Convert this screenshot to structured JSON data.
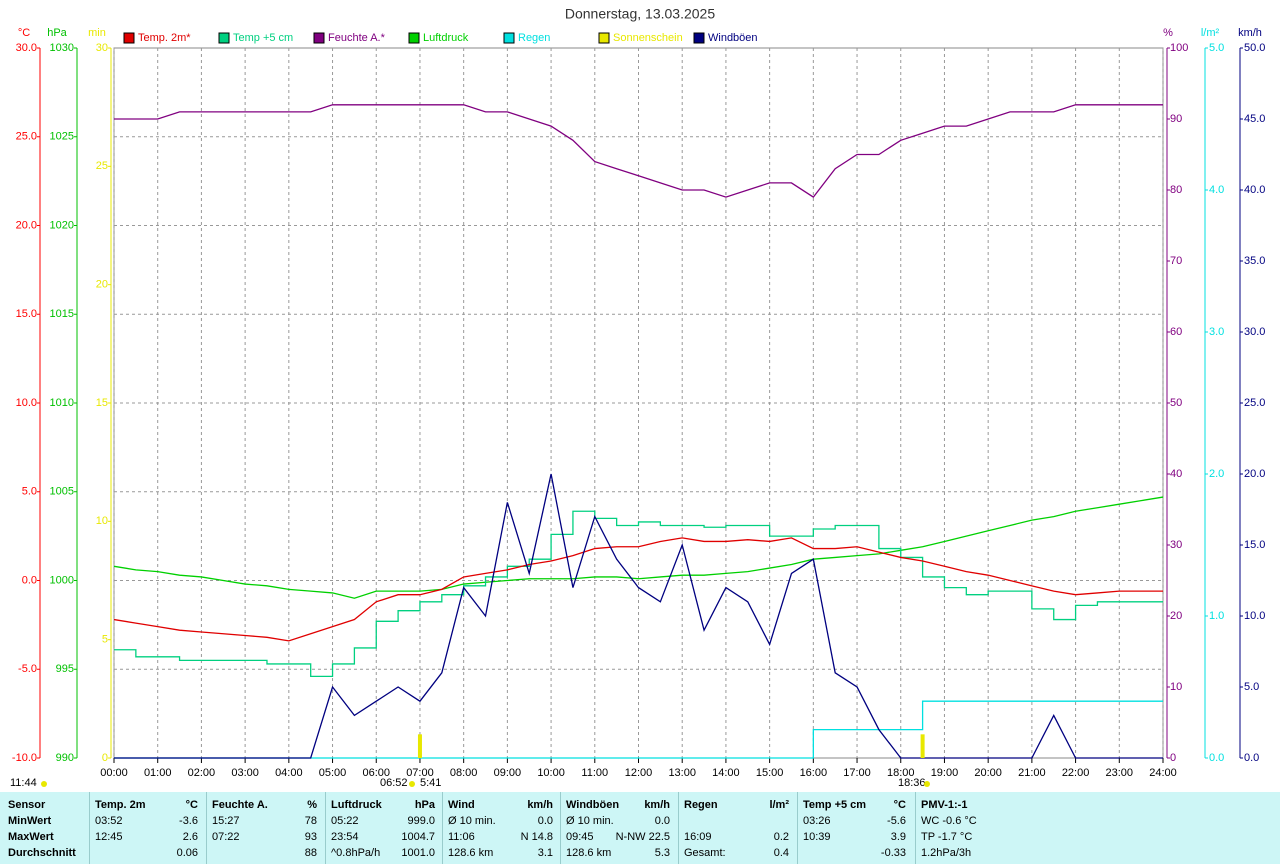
{
  "chart_data": {
    "type": "line",
    "title": "Donnerstag, 13.03.2025",
    "xlim": [
      0,
      24
    ],
    "xticks": [
      {
        "value": 0,
        "label": "00:00"
      },
      {
        "value": 1,
        "label": "01:00"
      },
      {
        "value": 2,
        "label": "02:00"
      },
      {
        "value": 3,
        "label": "03:00"
      },
      {
        "value": 4,
        "label": "04:00"
      },
      {
        "value": 5,
        "label": "05:00"
      },
      {
        "value": 6,
        "label": "06:00"
      },
      {
        "value": 7,
        "label": "07:00"
      },
      {
        "value": 8,
        "label": "08:00"
      },
      {
        "value": 9,
        "label": "09:00"
      },
      {
        "value": 10,
        "label": "10:00"
      },
      {
        "value": 11,
        "label": "11:00"
      },
      {
        "value": 12,
        "label": "12:00"
      },
      {
        "value": 13,
        "label": "13:00"
      },
      {
        "value": 14,
        "label": "14:00"
      },
      {
        "value": 15,
        "label": "15:00"
      },
      {
        "value": 16,
        "label": "16:00"
      },
      {
        "value": 17,
        "label": "17:00"
      },
      {
        "value": 18,
        "label": "18:00"
      },
      {
        "value": 19,
        "label": "19:00"
      },
      {
        "value": 20,
        "label": "20:00"
      },
      {
        "value": 21,
        "label": "21:00"
      },
      {
        "value": 22,
        "label": "22:00"
      },
      {
        "value": 23,
        "label": "23:00"
      },
      {
        "value": 24,
        "label": "24:00"
      }
    ],
    "grid": true,
    "axes": [
      {
        "unit": "°C",
        "color": "#ff0000",
        "lim": [
          -10,
          30
        ],
        "ticks": [
          {
            "value": -10,
            "label": "-10.0"
          },
          {
            "value": -5,
            "label": "-5.0"
          },
          {
            "value": 0,
            "label": "0.0"
          },
          {
            "value": 5,
            "label": "5.0"
          },
          {
            "value": 10,
            "label": "10.0"
          },
          {
            "value": 15,
            "label": "15.0"
          },
          {
            "value": 20,
            "label": "20.0"
          },
          {
            "value": 25,
            "label": "25.0"
          },
          {
            "value": 30,
            "label": "30.0"
          }
        ]
      },
      {
        "unit": "hPa",
        "color": "#00c000",
        "lim": [
          990,
          1030
        ],
        "ticks": [
          990,
          995,
          1000,
          1005,
          1010,
          1015,
          1020,
          1025,
          1030
        ]
      },
      {
        "unit": "min",
        "color": "#e8e800",
        "lim": [
          0,
          30
        ],
        "ticks": [
          0,
          5,
          10,
          15,
          20,
          25,
          30
        ]
      },
      {
        "unit": "%",
        "color": "#800080",
        "lim": [
          0,
          100
        ],
        "ticks": [
          0,
          10,
          20,
          30,
          40,
          50,
          60,
          70,
          80,
          90,
          100
        ]
      },
      {
        "unit": "l/m²",
        "color": "#00e0e0",
        "lim": [
          0,
          5
        ],
        "ticks": [
          {
            "value": 0,
            "label": "0.0"
          },
          {
            "value": 1,
            "label": "1.0"
          },
          {
            "value": 2,
            "label": "2.0"
          },
          {
            "value": 3,
            "label": "3.0"
          },
          {
            "value": 4,
            "label": "4.0"
          },
          {
            "value": 5,
            "label": "5.0"
          }
        ]
      },
      {
        "unit": "km/h",
        "color": "#000080",
        "lim": [
          0,
          50
        ],
        "ticks": [
          {
            "value": 0,
            "label": "0.0"
          },
          {
            "value": 5,
            "label": "5.0"
          },
          {
            "value": 10,
            "label": "10.0"
          },
          {
            "value": 15,
            "label": "15.0"
          },
          {
            "value": 20,
            "label": "20.0"
          },
          {
            "value": 25,
            "label": "25.0"
          },
          {
            "value": 30,
            "label": "30.0"
          },
          {
            "value": 35,
            "label": "35.0"
          },
          {
            "value": 40,
            "label": "40.0"
          },
          {
            "value": 45,
            "label": "45.0"
          },
          {
            "value": 50,
            "label": "50.0"
          }
        ]
      }
    ],
    "x": [
      0,
      0.5,
      1,
      1.5,
      2,
      2.5,
      3,
      3.5,
      4,
      4.5,
      5,
      5.5,
      6,
      6.5,
      7,
      7.5,
      8,
      8.5,
      9,
      9.5,
      10,
      10.5,
      11,
      11.5,
      12,
      12.5,
      13,
      13.5,
      14,
      14.5,
      15,
      15.5,
      16,
      16.5,
      17,
      17.5,
      18,
      18.5,
      19,
      19.5,
      20,
      20.5,
      21,
      21.5,
      22,
      22.5,
      23,
      23.5,
      24
    ],
    "series": [
      {
        "name": "Temp. 2m*",
        "color": "#e00000",
        "axis": 0,
        "style": "line",
        "values": [
          -2.2,
          -2.4,
          -2.6,
          -2.8,
          -2.9,
          -3.0,
          -3.1,
          -3.2,
          -3.4,
          -3.0,
          -2.6,
          -2.2,
          -1.2,
          -0.8,
          -0.8,
          -0.5,
          0.2,
          0.4,
          0.6,
          0.9,
          1.1,
          1.4,
          1.8,
          1.9,
          1.9,
          2.2,
          2.4,
          2.2,
          2.2,
          2.3,
          2.2,
          2.4,
          1.8,
          1.8,
          1.9,
          1.6,
          1.3,
          1.1,
          0.8,
          0.5,
          0.3,
          0.0,
          -0.3,
          -0.6,
          -0.8,
          -0.7,
          -0.6,
          -0.6,
          -0.6
        ]
      },
      {
        "name": "Temp +5 cm",
        "color": "#00d080",
        "axis": 0,
        "style": "step",
        "values": [
          -3.9,
          -4.3,
          -4.3,
          -4.5,
          -4.5,
          -4.5,
          -4.5,
          -4.7,
          -4.7,
          -5.4,
          -4.7,
          -3.8,
          -2.3,
          -1.7,
          -1.2,
          -0.8,
          -0.3,
          0.2,
          0.8,
          1.2,
          2.6,
          3.9,
          3.5,
          3.1,
          3.3,
          3.1,
          3.1,
          3.0,
          3.1,
          3.1,
          2.5,
          2.5,
          2.9,
          3.1,
          3.1,
          1.8,
          1.3,
          0.2,
          -0.4,
          -0.8,
          -0.6,
          -0.6,
          -1.6,
          -2.2,
          -1.4,
          -1.2,
          -1.2,
          -1.2,
          -1.2
        ]
      },
      {
        "name": "Feuchte A.*",
        "color": "#800080",
        "axis": 3,
        "style": "line",
        "values": [
          90,
          90,
          90,
          91,
          91,
          91,
          91,
          91,
          91,
          91,
          92,
          92,
          92,
          92,
          92,
          92,
          92,
          91,
          91,
          90,
          89,
          87,
          84,
          83,
          82,
          81,
          80,
          80,
          79,
          80,
          81,
          81,
          79,
          83,
          85,
          85,
          87,
          88,
          89,
          89,
          90,
          91,
          91,
          91,
          92,
          92,
          92,
          92,
          92
        ]
      },
      {
        "name": "Luftdruck",
        "color": "#00d000",
        "axis": 1,
        "style": "line",
        "values": [
          1000.8,
          1000.6,
          1000.5,
          1000.3,
          1000.2,
          1000.0,
          999.8,
          999.7,
          999.5,
          999.4,
          999.3,
          999.0,
          999.4,
          999.4,
          999.4,
          999.5,
          999.8,
          999.9,
          1000.0,
          1000.1,
          1000.1,
          1000.1,
          1000.2,
          1000.2,
          1000.1,
          1000.2,
          1000.3,
          1000.3,
          1000.4,
          1000.5,
          1000.7,
          1000.9,
          1001.2,
          1001.3,
          1001.4,
          1001.5,
          1001.7,
          1001.9,
          1002.2,
          1002.5,
          1002.8,
          1003.1,
          1003.4,
          1003.6,
          1003.9,
          1004.1,
          1004.3,
          1004.5,
          1004.7
        ]
      },
      {
        "name": "Regen",
        "color": "#00e0e0",
        "axis": 4,
        "style": "step",
        "values": [
          0,
          0,
          0,
          0,
          0,
          0,
          0,
          0,
          0,
          0,
          0,
          0,
          0,
          0,
          0,
          0,
          0,
          0,
          0,
          0,
          0,
          0,
          0,
          0,
          0,
          0,
          0,
          0,
          0,
          0,
          0,
          0,
          0.2,
          0.2,
          0.2,
          0.2,
          0.2,
          0.4,
          0.4,
          0.4,
          0.4,
          0.4,
          0.4,
          0.4,
          0.4,
          0.4,
          0.4,
          0.4,
          0.4
        ]
      },
      {
        "name": "Sonnenschein",
        "color": "#e8e800",
        "axis": 2,
        "style": "bar",
        "values": [
          0,
          0,
          0,
          0,
          0,
          0,
          0,
          0,
          0,
          0,
          0,
          0,
          0,
          0,
          1,
          0,
          0,
          0,
          0,
          0,
          0,
          0,
          0,
          0,
          0,
          0,
          0,
          0,
          0,
          0,
          0,
          0,
          0,
          0,
          0,
          0,
          0,
          1,
          0,
          0,
          0,
          0,
          0,
          0,
          0,
          0,
          0,
          0,
          0
        ]
      },
      {
        "name": "Windböen",
        "color": "#000080",
        "axis": 5,
        "style": "line",
        "values": [
          0,
          0,
          0,
          0,
          0,
          0,
          0,
          0,
          0,
          0,
          5,
          3,
          4,
          5,
          4,
          6,
          12,
          10,
          18,
          13,
          20,
          12,
          17,
          14,
          12,
          11,
          15,
          9,
          12,
          11,
          8,
          13,
          14,
          6,
          5,
          2,
          0,
          0,
          0,
          0,
          0,
          0,
          0,
          3,
          0,
          0,
          0,
          0,
          0
        ]
      }
    ],
    "annotations": [
      "11:44",
      "06:52",
      "5:41",
      "18:36"
    ]
  },
  "table": {
    "rows": [
      [
        [
          "Sensor"
        ],
        [
          "Temp. 2m",
          "°C"
        ],
        [
          "Feuchte A.",
          "%"
        ],
        [
          "Luftdruck",
          "hPa"
        ],
        [
          "Wind",
          "km/h"
        ],
        [
          "Windböen",
          "km/h"
        ],
        [
          "Regen",
          "l/m²"
        ],
        [
          "Temp +5 cm",
          "°C"
        ],
        [
          "PMV-1:-1"
        ]
      ],
      [
        [
          "MinWert"
        ],
        [
          "03:52",
          "-3.6"
        ],
        [
          "15:27",
          "78"
        ],
        [
          "05:22",
          "999.0"
        ],
        [
          "Ø 10 min.",
          "0.0"
        ],
        [
          "Ø 10 min.",
          "0.0"
        ],
        [],
        [
          "03:26",
          "-5.6"
        ],
        [
          "WC -0.6 °C"
        ]
      ],
      [
        [
          "MaxWert"
        ],
        [
          "12:45",
          "2.6"
        ],
        [
          "07:22",
          "93"
        ],
        [
          "23:54",
          "1004.7"
        ],
        [
          "11:06",
          "N 14.8"
        ],
        [
          "09:45",
          "N-NW 22.5"
        ],
        [
          "16:09",
          "0.2"
        ],
        [
          "10:39",
          "3.9"
        ],
        [
          "TP -1.7 °C"
        ]
      ],
      [
        [
          "Durchschnitt"
        ],
        [
          "0.06"
        ],
        [
          "88"
        ],
        [
          "^0.8hPa/h",
          "1001.0"
        ],
        [
          "128.6 km",
          "3.1"
        ],
        [
          "128.6 km",
          "5.3"
        ],
        [
          "Gesamt:",
          "0.4"
        ],
        [
          "-0.33"
        ],
        [
          "1.2hPa/3h"
        ]
      ]
    ]
  }
}
